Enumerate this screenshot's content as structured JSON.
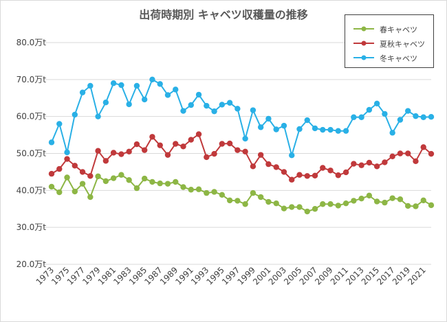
{
  "chart_data": {
    "type": "line",
    "title": "出荷時期別 キャベツ収穫量の推移",
    "xlabel": "",
    "ylabel": "",
    "ylim": [
      20,
      80
    ],
    "yticks": [
      "20.0万t",
      "30.0万t",
      "40.0万t",
      "50.0万t",
      "60.0万t",
      "70.0万t",
      "80.0万t"
    ],
    "grid": true,
    "legend_position": "top-right",
    "x": [
      1973,
      1974,
      1975,
      1976,
      1977,
      1978,
      1979,
      1980,
      1981,
      1982,
      1983,
      1984,
      1985,
      1986,
      1987,
      1988,
      1989,
      1990,
      1991,
      1992,
      1993,
      1994,
      1995,
      1996,
      1997,
      1998,
      1999,
      2000,
      2001,
      2002,
      2003,
      2004,
      2005,
      2006,
      2007,
      2008,
      2009,
      2010,
      2011,
      2012,
      2013,
      2014,
      2015,
      2016,
      2017,
      2018,
      2019,
      2020,
      2021,
      2022
    ],
    "xtick_labels": [
      "1973",
      "1975",
      "1977",
      "1979",
      "1981",
      "1983",
      "1985",
      "1987",
      "1989",
      "1991",
      "1993",
      "1995",
      "1997",
      "1999",
      "2001",
      "2003",
      "2005",
      "2007",
      "2009",
      "2011",
      "2013",
      "2015",
      "2017",
      "2019",
      "2021"
    ],
    "series": [
      {
        "name": "春キャベツ",
        "color": "#8db645",
        "values": [
          41.0,
          39.5,
          43.5,
          39.7,
          41.8,
          38.2,
          43.8,
          42.5,
          43.3,
          44.2,
          42.8,
          40.6,
          43.2,
          42.3,
          41.9,
          41.8,
          42.3,
          40.9,
          40.2,
          40.3,
          39.3,
          39.6,
          38.8,
          37.3,
          37.2,
          36.3,
          39.3,
          38.2,
          36.9,
          36.5,
          35.1,
          35.5,
          35.5,
          34.3,
          35.0,
          36.3,
          36.3,
          35.9,
          36.5,
          37.2,
          37.8,
          38.6,
          37.0,
          36.7,
          37.9,
          37.6,
          35.8,
          35.7,
          37.3,
          36.0
        ]
      },
      {
        "name": "夏秋キャベツ",
        "color": "#c0393b",
        "values": [
          44.5,
          45.8,
          48.5,
          46.7,
          45.0,
          43.9,
          50.7,
          48.0,
          50.2,
          49.8,
          50.5,
          52.5,
          50.9,
          54.5,
          52.2,
          49.6,
          52.6,
          51.9,
          53.7,
          55.2,
          49.0,
          49.9,
          52.6,
          52.7,
          50.9,
          50.5,
          46.5,
          49.6,
          47.1,
          46.3,
          45.0,
          42.9,
          44.2,
          43.9,
          44.0,
          46.1,
          45.4,
          44.1,
          44.9,
          47.2,
          46.8,
          47.5,
          46.5,
          47.6,
          49.2,
          50.0,
          50.0,
          47.9,
          51.7,
          49.9
        ]
      },
      {
        "name": "冬キャベツ",
        "color": "#29b0e6",
        "values": [
          53.0,
          58.0,
          50.3,
          60.5,
          66.5,
          68.3,
          60.0,
          63.8,
          69.0,
          68.5,
          63.3,
          68.3,
          64.6,
          70.0,
          68.8,
          65.8,
          67.3,
          61.5,
          63.1,
          65.9,
          62.9,
          61.4,
          63.2,
          63.7,
          62.1,
          54.0,
          61.7,
          57.1,
          59.4,
          56.5,
          57.5,
          49.5,
          56.6,
          59.0,
          56.8,
          56.4,
          56.4,
          56.1,
          56.1,
          59.8,
          59.8,
          61.8,
          63.5,
          60.7,
          55.6,
          59.1,
          61.5,
          60.1,
          59.8,
          59.9
        ]
      }
    ]
  }
}
